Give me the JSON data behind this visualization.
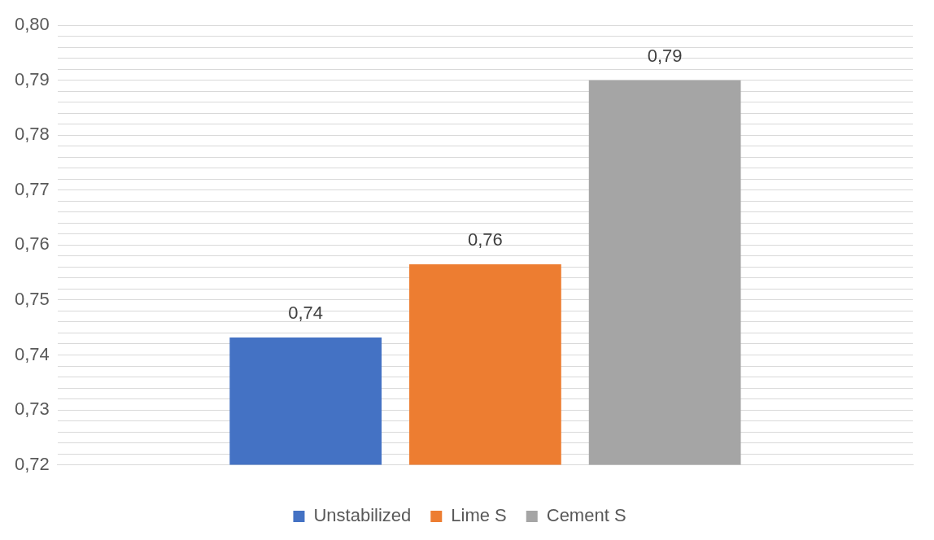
{
  "chart_data": {
    "type": "bar",
    "categories": [
      null
    ],
    "series": [
      {
        "name": "Unstabilized",
        "color": "#4472c4",
        "values": [
          0.7432
        ],
        "value_labels": [
          "0,74"
        ]
      },
      {
        "name": "Lime S",
        "color": "#ed7d31",
        "values": [
          0.7565
        ],
        "value_labels": [
          "0,76"
        ]
      },
      {
        "name": "Cement S",
        "color": "#a5a5a5",
        "values": [
          0.79
        ],
        "value_labels": [
          "0,79"
        ]
      }
    ],
    "ylim": [
      0.72,
      0.8
    ],
    "yticks": [
      {
        "value": 0.72,
        "label": "0,72"
      },
      {
        "value": 0.722,
        "label": null
      },
      {
        "value": 0.724,
        "label": null
      },
      {
        "value": 0.726,
        "label": null
      },
      {
        "value": 0.728,
        "label": null
      },
      {
        "value": 0.73,
        "label": "0,73"
      },
      {
        "value": 0.732,
        "label": null
      },
      {
        "value": 0.734,
        "label": null
      },
      {
        "value": 0.736,
        "label": null
      },
      {
        "value": 0.738,
        "label": null
      },
      {
        "value": 0.74,
        "label": "0,74"
      },
      {
        "value": 0.742,
        "label": null
      },
      {
        "value": 0.744,
        "label": null
      },
      {
        "value": 0.746,
        "label": null
      },
      {
        "value": 0.748,
        "label": null
      },
      {
        "value": 0.75,
        "label": "0,75"
      },
      {
        "value": 0.752,
        "label": null
      },
      {
        "value": 0.754,
        "label": null
      },
      {
        "value": 0.756,
        "label": null
      },
      {
        "value": 0.758,
        "label": null
      },
      {
        "value": 0.76,
        "label": "0,76"
      },
      {
        "value": 0.762,
        "label": null
      },
      {
        "value": 0.764,
        "label": null
      },
      {
        "value": 0.766,
        "label": null
      },
      {
        "value": 0.768,
        "label": null
      },
      {
        "value": 0.77,
        "label": "0,77"
      },
      {
        "value": 0.772,
        "label": null
      },
      {
        "value": 0.774,
        "label": null
      },
      {
        "value": 0.776,
        "label": null
      },
      {
        "value": 0.778,
        "label": null
      },
      {
        "value": 0.78,
        "label": "0,78"
      },
      {
        "value": 0.782,
        "label": null
      },
      {
        "value": 0.784,
        "label": null
      },
      {
        "value": 0.786,
        "label": null
      },
      {
        "value": 0.788,
        "label": null
      },
      {
        "value": 0.79,
        "label": "0,79"
      },
      {
        "value": 0.792,
        "label": null
      },
      {
        "value": 0.794,
        "label": null
      },
      {
        "value": 0.796,
        "label": null
      },
      {
        "value": 0.798,
        "label": null
      },
      {
        "value": 0.8,
        "label": "0,80"
      }
    ],
    "grid": "y",
    "legend": "bottom"
  }
}
